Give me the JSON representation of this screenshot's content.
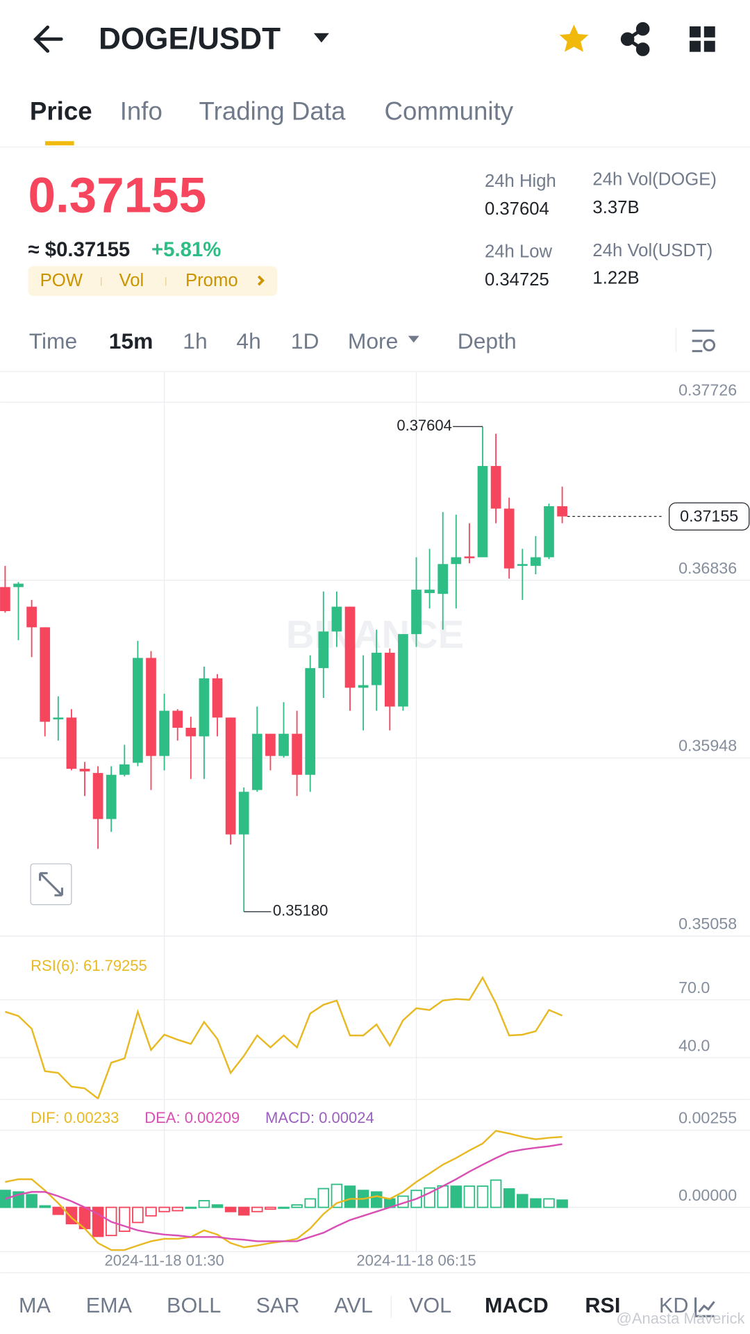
{
  "header": {
    "pair": "DOGE/USDT"
  },
  "tabs": [
    "Price",
    "Info",
    "Trading Data",
    "Community"
  ],
  "price": {
    "last": "0.37155",
    "approx": "≈ $0.37155",
    "change": "+5.81%"
  },
  "tags": [
    "POW",
    "Vol",
    "Promo"
  ],
  "stats": [
    {
      "label": "24h High",
      "value": "0.37604"
    },
    {
      "label": "24h Vol(DOGE)",
      "value": "3.37B"
    },
    {
      "label": "24h Low",
      "value": "0.34725"
    },
    {
      "label": "24h Vol(USDT)",
      "value": "1.22B"
    }
  ],
  "intervals": [
    "Time",
    "15m",
    "1h",
    "4h",
    "1D",
    "More",
    "Depth"
  ],
  "indicator_tabs": [
    "MA",
    "EMA",
    "BOLL",
    "SAR",
    "AVL",
    "VOL",
    "MACD",
    "RSI",
    "KD"
  ],
  "watermark": "BINANCE",
  "credit": "@Anasta Maverick",
  "chart_data": [
    {
      "type": "candlestick",
      "up_color": "#2ebd85",
      "down_color": "#f6465d",
      "categories": [
        null,
        null,
        null,
        null,
        null,
        null,
        null,
        null,
        null,
        null,
        null,
        null,
        "2024-11-18 01:30",
        null,
        null,
        null,
        null,
        null,
        null,
        null,
        null,
        null,
        null,
        null,
        null,
        null,
        null,
        null,
        null,
        null,
        null,
        "2024-11-18 06:15",
        null,
        null,
        null,
        null,
        null,
        null,
        null,
        null,
        null,
        null,
        null
      ],
      "open": [
        0.36802,
        0.36802,
        0.36704,
        0.36601,
        0.36141,
        0.3615,
        0.35894,
        0.35873,
        0.35643,
        0.35864,
        0.35924,
        0.36448,
        0.35958,
        0.36184,
        0.36099,
        0.36056,
        0.36346,
        0.3615,
        0.35566,
        0.35788,
        0.36069,
        0.35958,
        0.36069,
        0.35864,
        0.36397,
        0.3658,
        0.36704,
        0.36299,
        0.36312,
        0.36474,
        0.36205,
        0.36567,
        0.36772,
        0.36768,
        0.36917,
        0.36955,
        0.36951,
        0.37407,
        0.37194,
        0.36908,
        0.36908,
        0.36951,
        0.37206
      ],
      "high": [
        0.36908,
        0.36827,
        0.36738,
        0.36601,
        0.36256,
        0.36192,
        0.35928,
        0.35907,
        0.35907,
        0.36014,
        0.36533,
        0.36482,
        0.36269,
        0.36192,
        0.36154,
        0.36405,
        0.36367,
        0.3615,
        0.35801,
        0.36205,
        0.36069,
        0.36227,
        0.36184,
        0.36461,
        0.3678,
        0.3678,
        0.36704,
        0.36461,
        0.36589,
        0.36495,
        0.36567,
        0.36951,
        0.36993,
        0.37177,
        0.37164,
        0.37121,
        0.37604,
        0.37568,
        0.37249,
        0.36993,
        0.37057,
        0.37219,
        0.37304
      ],
      "low": [
        0.36674,
        0.36537,
        0.36452,
        0.36056,
        0.36035,
        0.35886,
        0.35758,
        0.35494,
        0.35579,
        0.35856,
        0.35907,
        0.35788,
        0.35886,
        0.36035,
        0.35843,
        0.35843,
        0.36056,
        0.35515,
        0.3518,
        0.35779,
        0.35886,
        0.3595,
        0.35758,
        0.35779,
        0.36248,
        0.36503,
        0.36184,
        0.36086,
        0.36184,
        0.36086,
        0.36184,
        0.36503,
        0.36695,
        0.36589,
        0.36695,
        0.36921,
        0.36951,
        0.37121,
        0.36844,
        0.36738,
        0.36866,
        0.36942,
        0.37121
      ],
      "close": [
        0.36682,
        0.36819,
        0.36601,
        0.36129,
        0.3615,
        0.35894,
        0.35881,
        0.35643,
        0.35864,
        0.35916,
        0.36448,
        0.35958,
        0.36184,
        0.36099,
        0.36056,
        0.36346,
        0.3615,
        0.35566,
        0.35779,
        0.36069,
        0.35958,
        0.36069,
        0.35864,
        0.36397,
        0.3658,
        0.36704,
        0.36299,
        0.36312,
        0.36474,
        0.36205,
        0.36567,
        0.36789,
        0.36789,
        0.36917,
        0.36951,
        0.36946,
        0.37407,
        0.37194,
        0.36895,
        0.36917,
        0.36951,
        0.37206,
        0.37155
      ],
      "low_label": "0.35180",
      "ylim": [
        0.35058,
        0.37726
      ],
      "yticks": [
        0.37726,
        0.36836,
        0.35948,
        0.35058
      ],
      "grid": true
    },
    {
      "type": "line",
      "title": "RSI(6): 61.79255",
      "color": "#e8b923",
      "values": [
        63.8,
        61.6,
        55.0,
        33.0,
        32.1,
        25.0,
        24.1,
        18.8,
        37.4,
        39.6,
        63.8,
        44.0,
        51.9,
        49.3,
        47.1,
        58.5,
        49.7,
        32.1,
        40.9,
        51.5,
        45.3,
        51.5,
        45.3,
        62.9,
        67.4,
        69.6,
        51.5,
        51.5,
        57.2,
        46.2,
        59.4,
        65.6,
        64.7,
        69.6,
        70.4,
        70.0,
        81.5,
        68.2,
        51.5,
        51.9,
        53.7,
        64.7,
        61.79255
      ],
      "ylim": [
        18.4,
        103
      ],
      "yticks": [
        {
          "value": 70,
          "label": "70.0"
        },
        {
          "value": 40,
          "label": "40.0"
        }
      ]
    },
    {
      "type": "macd",
      "up_color": "#2ebd85",
      "down_color": "#f6465d",
      "series": [
        {
          "name": "DIF: 0.00233",
          "color": "#e8b923",
          "values": [
            0.00084,
            0.00093,
            0.00093,
            0.00056,
            0.00014,
            -0.00034,
            -0.0007,
            -0.00118,
            -0.00141,
            -0.00141,
            -0.00126,
            -0.00112,
            -0.00104,
            -0.00104,
            -0.00098,
            -0.00076,
            -0.0009,
            -0.00118,
            -0.00132,
            -0.00126,
            -0.00118,
            -0.00112,
            -0.00104,
            -0.0007,
            -0.00022,
            0.00014,
            0.00028,
            0.00028,
            0.00037,
            0.00028,
            0.00051,
            0.00084,
            0.00112,
            0.00141,
            0.00163,
            0.00188,
            0.00211,
            0.00253,
            0.00244,
            0.00233,
            0.00225,
            0.0023,
            0.00233
          ]
        },
        {
          "name": "DEA: 0.00209",
          "color": "#d94fb3",
          "values": [
            0.00028,
            0.00042,
            0.00051,
            0.00051,
            0.00037,
            0.0002,
            0,
            -0.00022,
            -0.00048,
            -0.00062,
            -0.00076,
            -0.00084,
            -0.0009,
            -0.00093,
            -0.00098,
            -0.00098,
            -0.00098,
            -0.00104,
            -0.00107,
            -0.00112,
            -0.00112,
            -0.00112,
            -0.00112,
            -0.00098,
            -0.00084,
            -0.00062,
            -0.00042,
            -0.00028,
            -0.00014,
            0,
            0.00014,
            0.00028,
            0.00048,
            0.0007,
            0.00093,
            0.00118,
            0.00141,
            0.00163,
            0.00183,
            0.00191,
            0.00197,
            0.00202,
            0.00209
          ]
        },
        {
          "name": "MACD: 0.00024",
          "color": "#9c5fc0",
          "values": [
            0.00056,
            0.00051,
            0.00042,
            5e-05,
            -0.00023,
            -0.00054,
            -0.0007,
            -0.00096,
            -0.00093,
            -0.00079,
            -0.0005,
            -0.00028,
            -0.00014,
            -0.00011,
            0,
            0.00022,
            8e-05,
            -0.00014,
            -0.00025,
            -0.00014,
            -6e-05,
            0,
            8e-05,
            0.00028,
            0.00062,
            0.00076,
            0.0007,
            0.00056,
            0.00051,
            0.00028,
            0.00037,
            0.00056,
            0.00064,
            0.00071,
            0.0007,
            0.0007,
            0.0007,
            0.0009,
            0.00061,
            0.00042,
            0.00028,
            0.00028,
            0.00024
          ]
        }
      ],
      "ylim": [
        -0.00146,
        0.00357
      ],
      "yticks": [
        0.00255,
        {
          "value": 0,
          "label": "0.00000"
        }
      ]
    }
  ]
}
